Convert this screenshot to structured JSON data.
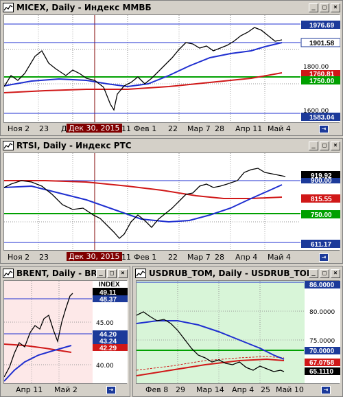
{
  "windows": {
    "micex": {
      "title": "MICEX, Daily - Индекс ММВБ",
      "price_tags": {
        "upper": "1976.69",
        "current": "1901.58",
        "red": "1760.81",
        "green": "1750.00",
        "lower": "1583.04"
      },
      "axis_labels": [
        "1800.00",
        "1600.00"
      ],
      "x_labels": [
        "Ноя 2",
        "23",
        "Д",
        "11",
        "Фев 1",
        "22",
        "Мар 7",
        "28",
        "Апр 11",
        "Май 4"
      ],
      "cursor_date": "Дек 30, 2015"
    },
    "rtsi": {
      "title": "RTSI, Daily - Индекс РТС",
      "price_tags": {
        "current": "919.92",
        "blue": "900.00",
        "red": "815.55",
        "green": "750.00",
        "lower": "611.17"
      },
      "x_labels": [
        "Ноя 2",
        "23",
        "11",
        "Фев 1",
        "22",
        "Мар 7",
        "28",
        "Апр 4",
        "Май 4"
      ],
      "cursor_date": "Дек 30, 2015"
    },
    "brent": {
      "title": "BRENT, Daily - BR...",
      "index_label": "INDEX",
      "price_tags": {
        "current": "49.11",
        "upper": "48.37",
        "blue": "44.20",
        "mid": "43.24",
        "red": "42.29"
      },
      "axis_labels": [
        "45.00",
        "40.00"
      ],
      "x_labels": [
        "Апр 11",
        "Май 2"
      ]
    },
    "usdrub": {
      "title": "USDRUB_TOM, Daily - USDRUB_TOM",
      "price_tags": {
        "upper": "86.0000",
        "green": "70.0000",
        "red": "67.0758",
        "current": "65.1110"
      },
      "axis_labels": [
        "80.0000",
        "75.0000"
      ],
      "x_labels": [
        "Фев 8",
        "29",
        "Мар 14",
        "Апр 4",
        "25",
        "Май 10"
      ]
    }
  },
  "colors": {
    "blue_ma": "#1f2fd0",
    "red_ma": "#d01818",
    "green_level": "#00a000",
    "price": "#000000",
    "highlight": "#800000"
  }
}
